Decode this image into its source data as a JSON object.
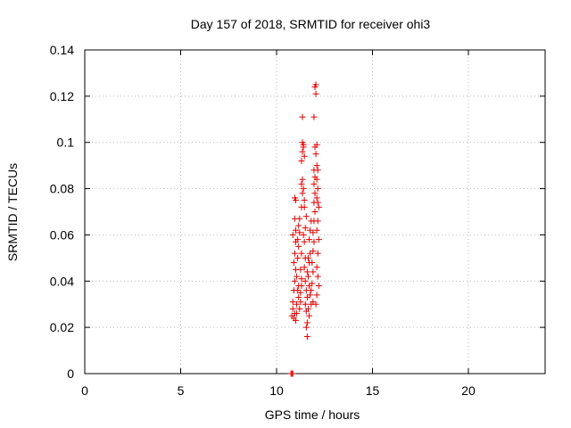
{
  "chart_data": {
    "type": "scatter",
    "title": "Day 157 of 2018, SRMTID for receiver ohi3",
    "xlabel": "GPS time / hours",
    "ylabel": "SRMTID / TECUs",
    "xlim": [
      0,
      24
    ],
    "ylim": [
      0,
      0.14
    ],
    "xticks": [
      0,
      5,
      10,
      15,
      20
    ],
    "xtick_labels": [
      "0",
      "5",
      "10",
      "15",
      "20"
    ],
    "yticks": [
      0,
      0.02,
      0.04,
      0.06,
      0.08,
      0.1,
      0.12,
      0.14
    ],
    "ytick_labels": [
      "0",
      "0.02",
      "0.04",
      "0.06",
      "0.08",
      "0.1",
      "0.12",
      "0.14"
    ],
    "grid": true,
    "marker": "+",
    "color": "#e00000",
    "series": [
      {
        "name": "SRMTID",
        "points": [
          [
            10.75,
            0.0
          ],
          [
            10.8,
            0.0
          ],
          [
            10.85,
            0.0
          ],
          [
            10.8,
            0.025
          ],
          [
            10.85,
            0.028
          ],
          [
            10.9,
            0.024
          ],
          [
            10.95,
            0.026
          ],
          [
            11.0,
            0.023
          ],
          [
            10.85,
            0.031
          ],
          [
            10.9,
            0.036
          ],
          [
            10.95,
            0.04
          ],
          [
            11.0,
            0.045
          ],
          [
            10.9,
            0.048
          ],
          [
            10.95,
            0.052
          ],
          [
            11.0,
            0.057
          ],
          [
            10.85,
            0.06
          ],
          [
            11.0,
            0.062
          ],
          [
            10.95,
            0.067
          ],
          [
            11.0,
            0.075
          ],
          [
            10.95,
            0.076
          ],
          [
            11.05,
            0.03
          ],
          [
            11.1,
            0.036
          ],
          [
            11.15,
            0.033
          ],
          [
            11.05,
            0.042
          ],
          [
            11.1,
            0.05
          ],
          [
            11.15,
            0.055
          ],
          [
            11.1,
            0.058
          ],
          [
            11.2,
            0.061
          ],
          [
            11.15,
            0.064
          ],
          [
            11.25,
            0.035
          ],
          [
            11.3,
            0.038
          ],
          [
            11.2,
            0.028
          ],
          [
            11.25,
            0.045
          ],
          [
            11.3,
            0.052
          ],
          [
            11.2,
            0.067
          ],
          [
            11.3,
            0.072
          ],
          [
            11.35,
            0.078
          ],
          [
            11.3,
            0.082
          ],
          [
            11.35,
            0.084
          ],
          [
            11.3,
            0.092
          ],
          [
            11.35,
            0.096
          ],
          [
            11.4,
            0.098
          ],
          [
            11.35,
            0.1
          ],
          [
            11.4,
            0.099
          ],
          [
            11.35,
            0.111
          ],
          [
            11.45,
            0.094
          ],
          [
            11.4,
            0.08
          ],
          [
            11.45,
            0.075
          ],
          [
            11.4,
            0.06
          ],
          [
            11.45,
            0.057
          ],
          [
            11.5,
            0.05
          ],
          [
            11.45,
            0.046
          ],
          [
            11.5,
            0.04
          ],
          [
            11.55,
            0.036
          ],
          [
            11.5,
            0.03
          ],
          [
            11.55,
            0.027
          ],
          [
            11.6,
            0.022
          ],
          [
            11.55,
            0.02
          ],
          [
            11.6,
            0.016
          ],
          [
            11.65,
            0.028
          ],
          [
            11.6,
            0.033
          ],
          [
            11.7,
            0.038
          ],
          [
            11.65,
            0.042
          ],
          [
            11.7,
            0.048
          ],
          [
            11.75,
            0.052
          ],
          [
            11.7,
            0.058
          ],
          [
            11.75,
            0.062
          ],
          [
            11.8,
            0.066
          ],
          [
            11.75,
            0.034
          ],
          [
            11.8,
            0.03
          ],
          [
            11.85,
            0.039
          ],
          [
            11.9,
            0.044
          ],
          [
            11.85,
            0.048
          ],
          [
            11.9,
            0.053
          ],
          [
            11.95,
            0.057
          ],
          [
            11.9,
            0.061
          ],
          [
            11.95,
            0.066
          ],
          [
            12.0,
            0.07
          ],
          [
            11.95,
            0.074
          ],
          [
            12.0,
            0.078
          ],
          [
            11.95,
            0.082
          ],
          [
            12.0,
            0.085
          ],
          [
            11.95,
            0.088
          ],
          [
            12.0,
            0.098
          ],
          [
            11.95,
            0.111
          ],
          [
            12.05,
            0.121
          ],
          [
            12.0,
            0.124
          ],
          [
            12.05,
            0.125
          ],
          [
            12.1,
            0.099
          ],
          [
            12.05,
            0.095
          ],
          [
            12.1,
            0.09
          ],
          [
            12.15,
            0.088
          ],
          [
            12.1,
            0.084
          ],
          [
            12.15,
            0.08
          ],
          [
            12.1,
            0.076
          ],
          [
            12.15,
            0.074
          ],
          [
            12.2,
            0.072
          ],
          [
            12.15,
            0.066
          ],
          [
            12.1,
            0.062
          ],
          [
            12.2,
            0.058
          ],
          [
            12.15,
            0.052
          ],
          [
            12.1,
            0.046
          ],
          [
            12.15,
            0.042
          ],
          [
            12.2,
            0.038
          ],
          [
            12.1,
            0.034
          ],
          [
            12.05,
            0.03
          ],
          [
            11.6,
            0.044
          ],
          [
            11.65,
            0.05
          ],
          [
            11.5,
            0.063
          ],
          [
            11.55,
            0.068
          ],
          [
            11.45,
            0.072
          ],
          [
            11.25,
            0.031
          ],
          [
            11.05,
            0.026
          ],
          [
            11.15,
            0.038
          ],
          [
            11.3,
            0.041
          ],
          [
            11.7,
            0.025
          ],
          [
            11.8,
            0.036
          ],
          [
            11.9,
            0.031
          ]
        ]
      }
    ]
  }
}
